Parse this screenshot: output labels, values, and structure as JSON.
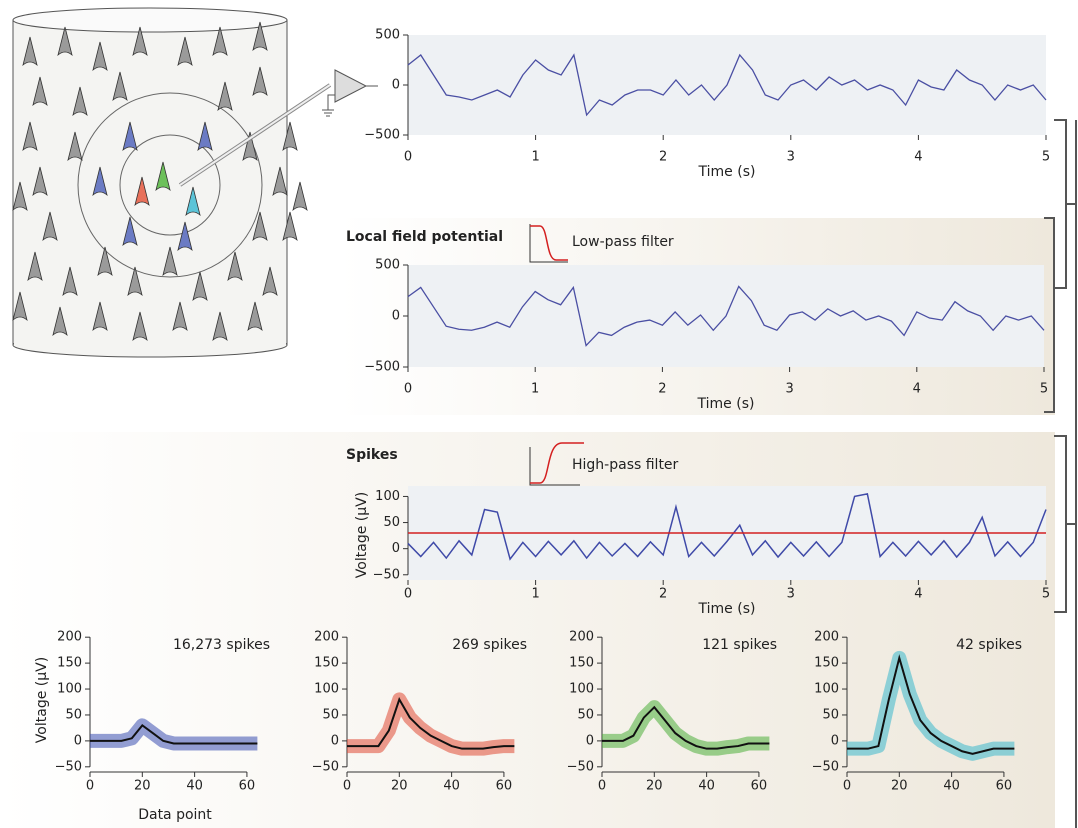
{
  "chart_data": [
    {
      "type": "line",
      "xlim": [
        0,
        5
      ],
      "ylim": [
        -500,
        500
      ],
      "xticks": [
        0,
        1,
        2,
        3,
        4,
        5
      ],
      "yticks": [
        {
          "value": -500,
          "label": "−500"
        },
        0,
        500
      ],
      "xlabel": "Time (s)",
      "color": "#4a4fa3",
      "x": [
        0,
        0.1,
        0.2,
        0.3,
        0.4,
        0.5,
        0.6,
        0.7,
        0.8,
        0.9,
        1,
        1.1,
        1.2,
        1.3,
        1.4,
        1.5,
        1.6,
        1.7,
        1.8,
        1.9,
        2,
        2.1,
        2.2,
        2.3,
        2.4,
        2.5,
        2.6,
        2.7,
        2.8,
        2.9,
        3,
        3.1,
        3.2,
        3.3,
        3.4,
        3.5,
        3.6,
        3.7,
        3.8,
        3.9,
        4,
        4.1,
        4.2,
        4.3,
        4.4,
        4.5,
        4.6,
        4.7,
        4.8,
        4.9,
        5
      ],
      "values": [
        200,
        300,
        100,
        -100,
        -120,
        -150,
        -100,
        -50,
        -120,
        100,
        250,
        150,
        100,
        300,
        -300,
        -150,
        -200,
        -100,
        -50,
        -50,
        -100,
        50,
        -100,
        0,
        -150,
        0,
        300,
        150,
        -100,
        -150,
        0,
        50,
        -50,
        80,
        0,
        50,
        -50,
        0,
        -50,
        -200,
        50,
        -20,
        -50,
        150,
        50,
        0,
        -150,
        0,
        -50,
        0,
        -150
      ]
    },
    {
      "type": "line",
      "title": "Local field potential",
      "annotation": "Low-pass filter",
      "xlim": [
        0,
        5
      ],
      "ylim": [
        -500,
        500
      ],
      "xticks": [
        0,
        1,
        2,
        3,
        4,
        5
      ],
      "yticks": [
        {
          "value": -500,
          "label": "−500"
        },
        0,
        500
      ],
      "xlabel": "Time (s)",
      "color": "#4a4fa3",
      "x": [
        0,
        0.1,
        0.2,
        0.3,
        0.4,
        0.5,
        0.6,
        0.7,
        0.8,
        0.9,
        1,
        1.1,
        1.2,
        1.3,
        1.4,
        1.5,
        1.6,
        1.7,
        1.8,
        1.9,
        2,
        2.1,
        2.2,
        2.3,
        2.4,
        2.5,
        2.6,
        2.7,
        2.8,
        2.9,
        3,
        3.1,
        3.2,
        3.3,
        3.4,
        3.5,
        3.6,
        3.7,
        3.8,
        3.9,
        4,
        4.1,
        4.2,
        4.3,
        4.4,
        4.5,
        4.6,
        4.7,
        4.8,
        4.9,
        5
      ],
      "values": [
        190,
        280,
        90,
        -100,
        -130,
        -140,
        -110,
        -60,
        -110,
        90,
        240,
        160,
        110,
        280,
        -290,
        -160,
        -190,
        -110,
        -60,
        -40,
        -90,
        40,
        -90,
        10,
        -140,
        0,
        290,
        150,
        -90,
        -140,
        10,
        40,
        -40,
        70,
        0,
        50,
        -40,
        0,
        -50,
        -190,
        40,
        -20,
        -40,
        140,
        50,
        0,
        -140,
        0,
        -40,
        0,
        -140
      ]
    },
    {
      "type": "line",
      "title": "Spikes",
      "annotation": "High-pass filter",
      "xlim": [
        0,
        5
      ],
      "ylim": [
        -60,
        120
      ],
      "xticks": [
        0,
        1,
        2,
        3,
        4,
        5
      ],
      "yticks": [
        {
          "value": -50,
          "label": "−50"
        },
        0,
        50,
        100
      ],
      "xlabel": "Time (s)",
      "ylabel": "Voltage (μV)",
      "color": "#3f4aa8",
      "threshold": {
        "value": 30,
        "color": "#d42020"
      },
      "x": [
        0,
        0.1,
        0.2,
        0.3,
        0.4,
        0.5,
        0.6,
        0.7,
        0.8,
        0.9,
        1,
        1.1,
        1.2,
        1.3,
        1.4,
        1.5,
        1.6,
        1.7,
        1.8,
        1.9,
        2,
        2.1,
        2.2,
        2.3,
        2.4,
        2.5,
        2.6,
        2.7,
        2.8,
        2.9,
        3,
        3.1,
        3.2,
        3.3,
        3.4,
        3.5,
        3.6,
        3.7,
        3.8,
        3.9,
        4,
        4.1,
        4.2,
        4.3,
        4.4,
        4.5,
        4.6,
        4.7,
        4.8,
        4.9,
        5
      ],
      "values": [
        10,
        -15,
        12,
        -18,
        15,
        -12,
        75,
        70,
        -20,
        12,
        -15,
        14,
        -12,
        15,
        -18,
        12,
        -14,
        10,
        -15,
        13,
        -12,
        80,
        -15,
        12,
        -14,
        14,
        45,
        -12,
        15,
        -16,
        12,
        -14,
        13,
        -15,
        12,
        100,
        105,
        -15,
        12,
        -14,
        14,
        -12,
        15,
        -16,
        12,
        60,
        -14,
        13,
        -15,
        12,
        75
      ]
    },
    {
      "type": "line",
      "annotation": "16,273 spikes",
      "xlim": [
        0,
        65
      ],
      "ylim": [
        -60,
        210
      ],
      "xticks": [
        0,
        20,
        40,
        60
      ],
      "yticks": [
        {
          "value": -50,
          "label": "−50"
        },
        0,
        50,
        100,
        150,
        200
      ],
      "xlabel": "Data point",
      "ylabel": "Voltage (μV)",
      "color": "#3a4fb0",
      "x": [
        0,
        4,
        8,
        12,
        16,
        20,
        24,
        28,
        32,
        36,
        40,
        44,
        48,
        52,
        56,
        60,
        64
      ],
      "values": [
        0,
        0,
        0,
        0,
        5,
        30,
        15,
        0,
        -5,
        -5,
        -5,
        -5,
        -5,
        -5,
        -5,
        -5,
        -5
      ]
    },
    {
      "type": "line",
      "annotation": "269 spikes",
      "xlim": [
        0,
        65
      ],
      "ylim": [
        -60,
        210
      ],
      "xticks": [
        0,
        20,
        40,
        60
      ],
      "yticks": [
        {
          "value": -50,
          "label": "−50"
        },
        0,
        50,
        100,
        150,
        200
      ],
      "color": "#e04a35",
      "x": [
        0,
        4,
        8,
        12,
        16,
        20,
        24,
        28,
        32,
        36,
        40,
        44,
        48,
        52,
        56,
        60,
        64
      ],
      "values": [
        -10,
        -10,
        -10,
        -10,
        20,
        80,
        45,
        25,
        10,
        0,
        -10,
        -15,
        -15,
        -15,
        -12,
        -10,
        -10
      ]
    },
    {
      "type": "line",
      "annotation": "121 spikes",
      "xlim": [
        0,
        65
      ],
      "ylim": [
        -60,
        210
      ],
      "xticks": [
        0,
        20,
        40,
        60
      ],
      "yticks": [
        {
          "value": -50,
          "label": "−50"
        },
        0,
        50,
        100,
        150,
        200
      ],
      "color": "#4caf3a",
      "x": [
        0,
        4,
        8,
        12,
        16,
        20,
        24,
        28,
        32,
        36,
        40,
        44,
        48,
        52,
        56,
        60,
        64
      ],
      "values": [
        0,
        0,
        0,
        10,
        45,
        65,
        40,
        15,
        0,
        -10,
        -15,
        -15,
        -12,
        -10,
        -5,
        -5,
        -5
      ]
    },
    {
      "type": "line",
      "annotation": "42 spikes",
      "xlim": [
        0,
        65
      ],
      "ylim": [
        -60,
        210
      ],
      "xticks": [
        0,
        20,
        40,
        60
      ],
      "yticks": [
        {
          "value": -50,
          "label": "−50"
        },
        0,
        50,
        100,
        150,
        200
      ],
      "color": "#3bb8cc",
      "x": [
        0,
        4,
        8,
        12,
        16,
        20,
        24,
        28,
        32,
        36,
        40,
        44,
        48,
        52,
        56,
        60,
        64
      ],
      "values": [
        -15,
        -15,
        -15,
        -10,
        80,
        160,
        90,
        40,
        15,
        0,
        -10,
        -20,
        -25,
        -20,
        -15,
        -15,
        -15
      ]
    }
  ]
}
